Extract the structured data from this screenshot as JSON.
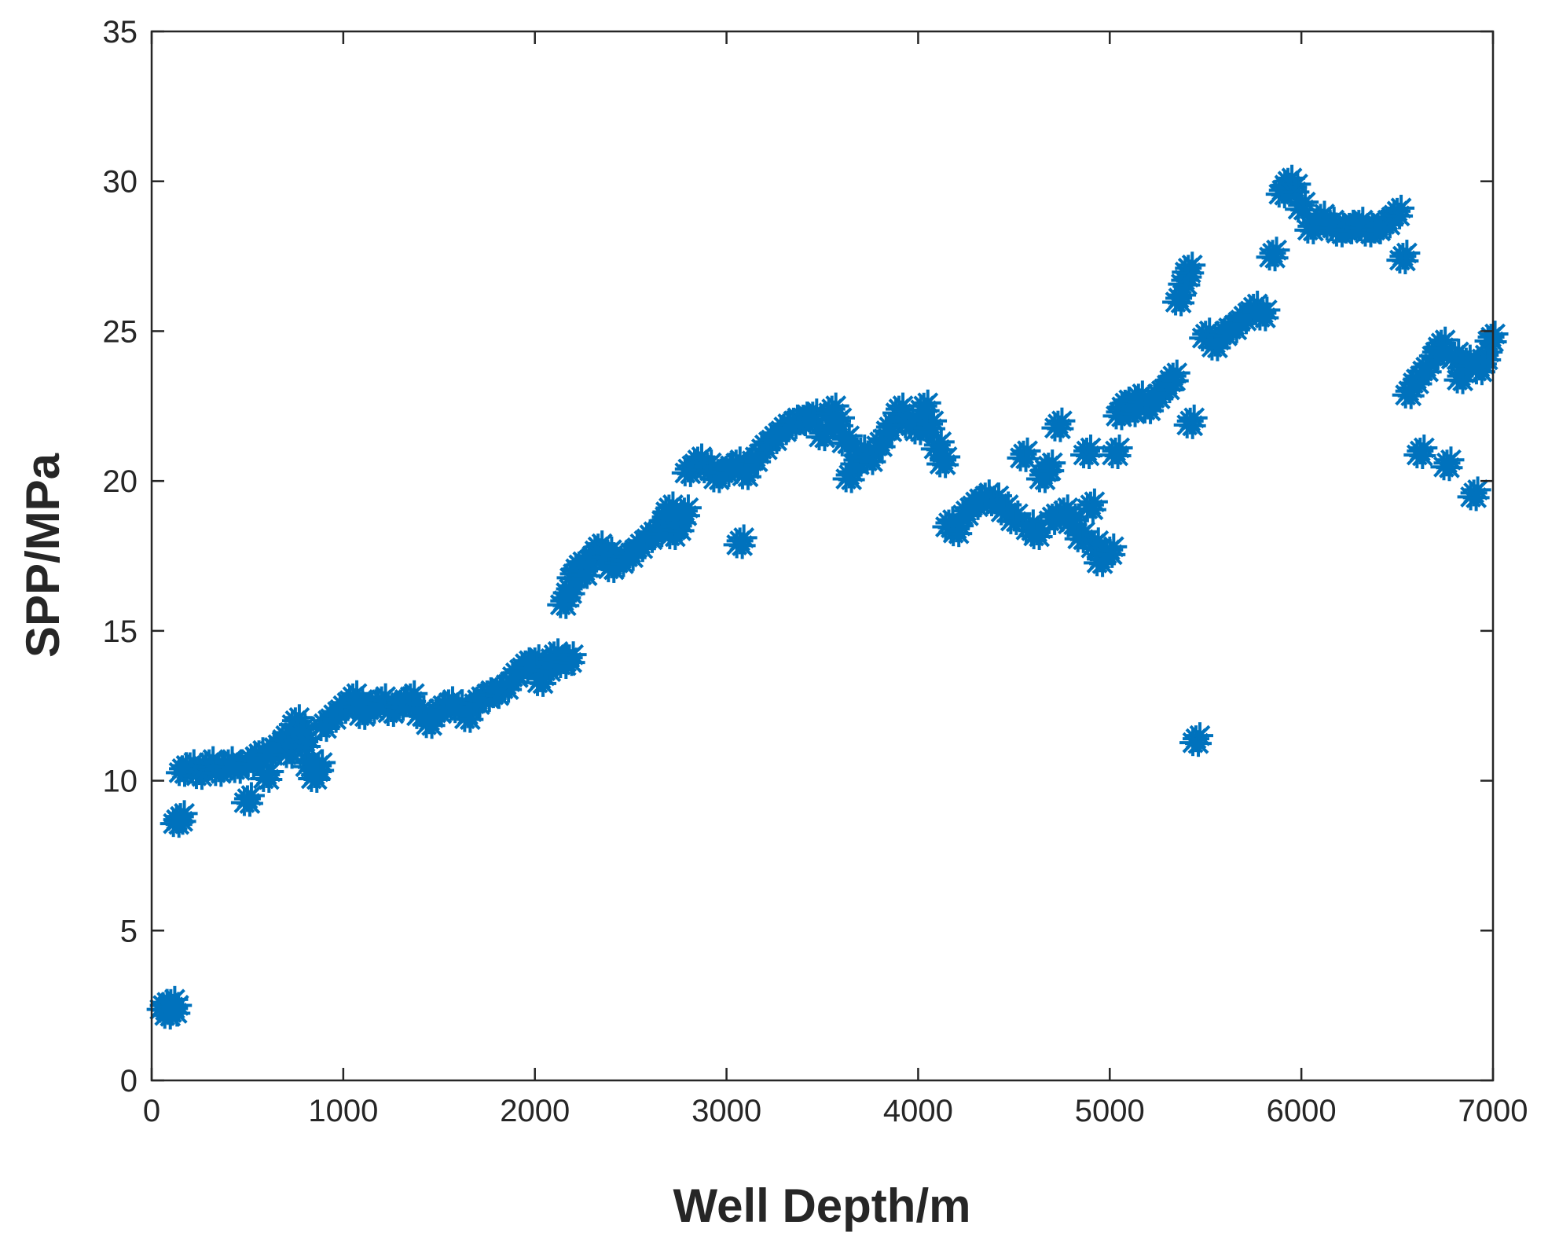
{
  "chart_data": {
    "type": "scatter",
    "title": "",
    "xlabel": "Well Depth/m",
    "ylabel": "SPP/MPa",
    "xlim": [
      0,
      7000
    ],
    "ylim": [
      0,
      35
    ],
    "xticks": [
      "0",
      "1000",
      "2000",
      "3000",
      "4000",
      "5000",
      "6000",
      "7000"
    ],
    "yticks": [
      "0",
      "5",
      "10",
      "15",
      "20",
      "25",
      "30",
      "35"
    ],
    "grid": false,
    "legend": "none",
    "marker": "asterisk",
    "color": "#0072BD",
    "series": [
      {
        "points": [
          [
            60,
            2.5
          ],
          [
            85,
            2.3
          ],
          [
            100,
            2.6
          ],
          [
            120,
            2.4
          ],
          [
            130,
            8.7
          ],
          [
            150,
            8.8
          ],
          [
            160,
            10.4
          ],
          [
            200,
            10.5
          ],
          [
            250,
            10.3
          ],
          [
            300,
            10.6
          ],
          [
            350,
            10.4
          ],
          [
            400,
            10.6
          ],
          [
            450,
            10.5
          ],
          [
            500,
            9.4
          ],
          [
            520,
            10.7
          ],
          [
            560,
            10.9
          ],
          [
            600,
            10.2
          ],
          [
            620,
            11.0
          ],
          [
            660,
            11.2
          ],
          [
            700,
            11.5
          ],
          [
            720,
            11.0
          ],
          [
            750,
            12.0
          ],
          [
            780,
            11.7
          ],
          [
            800,
            11.3
          ],
          [
            820,
            10.6
          ],
          [
            850,
            10.2
          ],
          [
            870,
            10.5
          ],
          [
            900,
            11.9
          ],
          [
            950,
            12.2
          ],
          [
            1000,
            12.5
          ],
          [
            1050,
            12.8
          ],
          [
            1080,
            12.6
          ],
          [
            1100,
            12.3
          ],
          [
            1150,
            12.5
          ],
          [
            1200,
            12.7
          ],
          [
            1250,
            12.4
          ],
          [
            1300,
            12.6
          ],
          [
            1350,
            12.8
          ],
          [
            1400,
            12.3
          ],
          [
            1450,
            12.0
          ],
          [
            1500,
            12.4
          ],
          [
            1550,
            12.6
          ],
          [
            1600,
            12.5
          ],
          [
            1650,
            12.2
          ],
          [
            1700,
            12.7
          ],
          [
            1750,
            12.9
          ],
          [
            1800,
            13.0
          ],
          [
            1850,
            13.2
          ],
          [
            1900,
            13.6
          ],
          [
            1950,
            13.9
          ],
          [
            2000,
            14.0
          ],
          [
            2030,
            13.4
          ],
          [
            2070,
            13.8
          ],
          [
            2100,
            14.2
          ],
          [
            2150,
            14.0
          ],
          [
            2180,
            14.1
          ],
          [
            2150,
            16.0
          ],
          [
            2180,
            16.4
          ],
          [
            2200,
            16.9
          ],
          [
            2230,
            17.2
          ],
          [
            2260,
            17.0
          ],
          [
            2300,
            17.5
          ],
          [
            2330,
            17.8
          ],
          [
            2380,
            17.6
          ],
          [
            2400,
            17.2
          ],
          [
            2450,
            17.4
          ],
          [
            2500,
            17.6
          ],
          [
            2550,
            17.9
          ],
          [
            2600,
            18.2
          ],
          [
            2650,
            18.4
          ],
          [
            2680,
            18.8
          ],
          [
            2700,
            19.1
          ],
          [
            2720,
            18.3
          ],
          [
            2750,
            18.5
          ],
          [
            2780,
            19.0
          ],
          [
            2800,
            20.4
          ],
          [
            2850,
            20.7
          ],
          [
            2900,
            20.5
          ],
          [
            2950,
            20.2
          ],
          [
            3000,
            20.4
          ],
          [
            3050,
            20.6
          ],
          [
            3070,
            18.0
          ],
          [
            3100,
            20.3
          ],
          [
            3150,
            20.8
          ],
          [
            3200,
            21.2
          ],
          [
            3250,
            21.5
          ],
          [
            3300,
            21.8
          ],
          [
            3350,
            22.0
          ],
          [
            3400,
            22.1
          ],
          [
            3450,
            22.2
          ],
          [
            3500,
            21.6
          ],
          [
            3550,
            22.4
          ],
          [
            3580,
            22.0
          ],
          [
            3620,
            21.4
          ],
          [
            3640,
            20.2
          ],
          [
            3680,
            20.7
          ],
          [
            3700,
            21.0
          ],
          [
            3750,
            20.8
          ],
          [
            3800,
            21.3
          ],
          [
            3850,
            21.8
          ],
          [
            3900,
            22.4
          ],
          [
            3950,
            22.0
          ],
          [
            4000,
            21.8
          ],
          [
            4030,
            22.5
          ],
          [
            4060,
            21.9
          ],
          [
            4100,
            21.2
          ],
          [
            4130,
            20.7
          ],
          [
            4160,
            18.6
          ],
          [
            4200,
            18.4
          ],
          [
            4250,
            19.0
          ],
          [
            4300,
            19.3
          ],
          [
            4350,
            19.5
          ],
          [
            4400,
            19.4
          ],
          [
            4450,
            19.1
          ],
          [
            4500,
            18.8
          ],
          [
            4550,
            20.9
          ],
          [
            4580,
            18.5
          ],
          [
            4620,
            18.3
          ],
          [
            4650,
            20.2
          ],
          [
            4680,
            20.5
          ],
          [
            4700,
            18.8
          ],
          [
            4730,
            21.9
          ],
          [
            4760,
            19.0
          ],
          [
            4800,
            18.7
          ],
          [
            4850,
            18.2
          ],
          [
            4880,
            21.0
          ],
          [
            4900,
            19.2
          ],
          [
            4920,
            17.9
          ],
          [
            4950,
            17.4
          ],
          [
            5000,
            17.7
          ],
          [
            5030,
            21.0
          ],
          [
            5050,
            22.3
          ],
          [
            5080,
            22.6
          ],
          [
            5120,
            22.4
          ],
          [
            5150,
            22.8
          ],
          [
            5200,
            22.5
          ],
          [
            5250,
            22.9
          ],
          [
            5300,
            23.2
          ],
          [
            5330,
            23.5
          ],
          [
            5360,
            26.1
          ],
          [
            5390,
            26.7
          ],
          [
            5410,
            27.1
          ],
          [
            5420,
            22.0
          ],
          [
            5450,
            11.4
          ],
          [
            5500,
            24.9
          ],
          [
            5550,
            24.6
          ],
          [
            5600,
            25.0
          ],
          [
            5650,
            25.2
          ],
          [
            5700,
            25.5
          ],
          [
            5750,
            25.8
          ],
          [
            5800,
            25.6
          ],
          [
            5850,
            27.6
          ],
          [
            5900,
            29.7
          ],
          [
            5930,
            30.0
          ],
          [
            5960,
            29.8
          ],
          [
            6000,
            29.2
          ],
          [
            6050,
            28.5
          ],
          [
            6100,
            28.8
          ],
          [
            6150,
            28.6
          ],
          [
            6200,
            28.4
          ],
          [
            6250,
            28.5
          ],
          [
            6300,
            28.6
          ],
          [
            6350,
            28.4
          ],
          [
            6400,
            28.5
          ],
          [
            6450,
            28.7
          ],
          [
            6500,
            29.0
          ],
          [
            6530,
            27.5
          ],
          [
            6560,
            23.0
          ],
          [
            6600,
            23.4
          ],
          [
            6620,
            21.0
          ],
          [
            6650,
            23.8
          ],
          [
            6700,
            24.3
          ],
          [
            6730,
            24.6
          ],
          [
            6760,
            20.6
          ],
          [
            6800,
            24.2
          ],
          [
            6830,
            23.5
          ],
          [
            6860,
            24.0
          ],
          [
            6900,
            19.6
          ],
          [
            6930,
            23.8
          ],
          [
            6960,
            24.2
          ],
          [
            6990,
            24.8
          ]
        ]
      }
    ]
  }
}
